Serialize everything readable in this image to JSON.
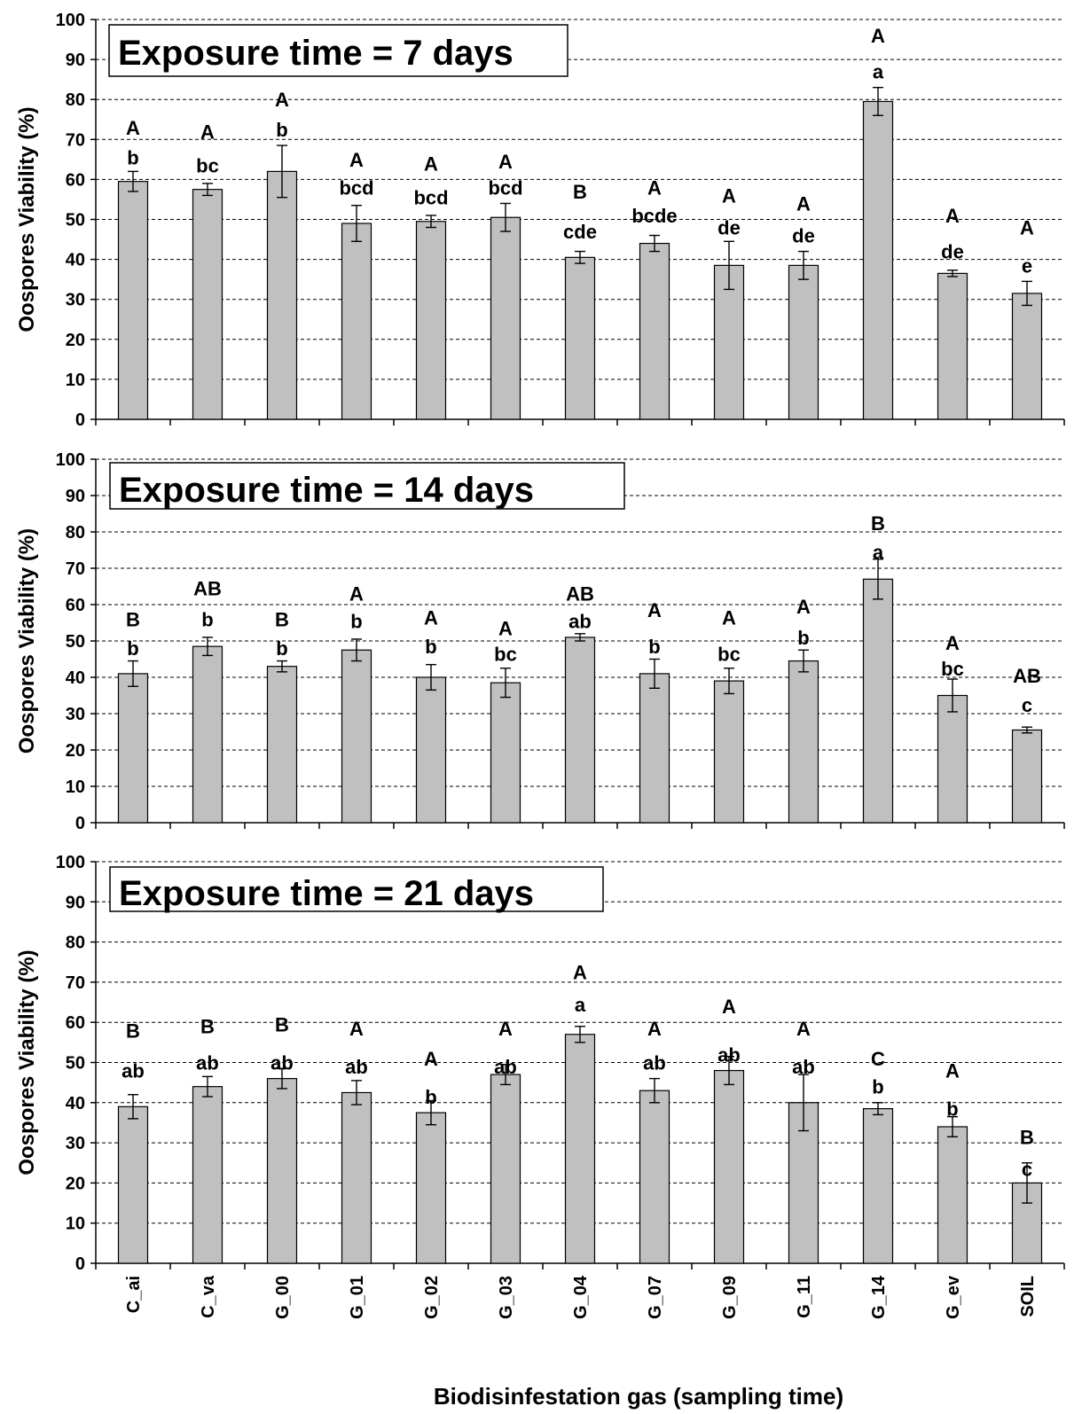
{
  "x_axis": {
    "label": "Biodisinfestation gas (sampling time)"
  },
  "colors": {
    "bar_fill": "#c0c0c0",
    "bar_stroke": "#000000",
    "grid": "#000000"
  },
  "chart_data": [
    {
      "type": "bar",
      "title": "Exposure time = 7 days",
      "ylabel": "Oospores Viability (%)",
      "ylim": [
        0,
        100
      ],
      "yticks": [
        0,
        10,
        20,
        30,
        40,
        50,
        60,
        70,
        80,
        90,
        100
      ],
      "grid": "dashed horizontal",
      "categories": [
        "C_ai",
        "C_va",
        "G_00",
        "G_01",
        "G_02",
        "G_03",
        "G_04",
        "G_07",
        "G_09",
        "G_11",
        "G_14",
        "G_ev",
        "SOIL"
      ],
      "values": [
        59.5,
        57.5,
        62,
        49,
        49.5,
        50.5,
        40.5,
        44,
        38.5,
        38.5,
        79.5,
        36.5,
        31.5
      ],
      "errors": [
        2.5,
        1.5,
        6.5,
        4.5,
        1.5,
        3.5,
        1.5,
        2,
        6,
        3.5,
        3.5,
        0.8,
        3
      ],
      "upper_letters": [
        "A",
        "A",
        "A",
        "A",
        "A",
        "A",
        "B",
        "A",
        "A",
        "A",
        "A",
        "A",
        "A"
      ],
      "lower_letters": [
        "b",
        "bc",
        "b",
        "bcd",
        "bcd",
        "bcd",
        "cde",
        "bcde",
        "de",
        "de",
        "a",
        "de",
        "e"
      ],
      "upper_letter_y": [
        73,
        72,
        80,
        65,
        64,
        64.5,
        57,
        58,
        56,
        54,
        96,
        51,
        48
      ],
      "lower_letter_y": [
        65.5,
        63.5,
        72.5,
        58,
        55.5,
        58,
        47,
        51,
        48,
        46,
        87,
        42,
        38.5
      ]
    },
    {
      "type": "bar",
      "title": "Exposure time = 14 days",
      "ylabel": "Oospores Viability (%)",
      "ylim": [
        0,
        100
      ],
      "yticks": [
        0,
        10,
        20,
        30,
        40,
        50,
        60,
        70,
        80,
        90,
        100
      ],
      "grid": "dashed horizontal",
      "categories": [
        "C_ai",
        "C_va",
        "G_00",
        "G_01",
        "G_02",
        "G_03",
        "G_04",
        "G_07",
        "G_09",
        "G_11",
        "G_14",
        "G_ev",
        "SOIL"
      ],
      "values": [
        41,
        48.5,
        43,
        47.5,
        40,
        38.5,
        51,
        41,
        39,
        44.5,
        67,
        35,
        25.5
      ],
      "errors": [
        3.5,
        2.5,
        1.5,
        3,
        3.5,
        4,
        1,
        4,
        3.5,
        3,
        5.5,
        4.5,
        0.8
      ],
      "upper_letters": [
        "B",
        "AB",
        "B",
        "A",
        "A",
        "A",
        "AB",
        "A",
        "A",
        "A",
        "B",
        "A",
        "AB"
      ],
      "lower_letters": [
        "b",
        "b",
        "b",
        "b",
        "b",
        "bc",
        "ab",
        "b",
        "bc",
        "b",
        "a",
        "bc",
        "c"
      ],
      "upper_letter_y": [
        56,
        64.5,
        56,
        63,
        56.5,
        53.5,
        63,
        58.5,
        56.5,
        59.5,
        82.5,
        49.5,
        40.5
      ],
      "lower_letter_y": [
        48,
        56,
        48,
        55.5,
        48.5,
        46.5,
        55.5,
        48.5,
        46.5,
        51,
        74.5,
        42.5,
        32.5
      ]
    },
    {
      "type": "bar",
      "title": "Exposure time = 21 days",
      "ylabel": "Oospores Viability (%)",
      "ylim": [
        0,
        100
      ],
      "yticks": [
        0,
        10,
        20,
        30,
        40,
        50,
        60,
        70,
        80,
        90,
        100
      ],
      "grid": "dashed horizontal",
      "categories": [
        "C_ai",
        "C_va",
        "G_00",
        "G_01",
        "G_02",
        "G_03",
        "G_04",
        "G_07",
        "G_09",
        "G_11",
        "G_14",
        "G_ev",
        "SOIL"
      ],
      "values": [
        39,
        44,
        46,
        42.5,
        37.5,
        47,
        57,
        43,
        48,
        40,
        38.5,
        34,
        20
      ],
      "errors": [
        3,
        2.5,
        2.5,
        3,
        3,
        2.5,
        2,
        3,
        3.5,
        7,
        1.5,
        2.5,
        5
      ],
      "upper_letters": [
        "B",
        "B",
        "B",
        "A",
        "A",
        "A",
        "A",
        "A",
        "A",
        "A",
        "C",
        "A",
        "B"
      ],
      "lower_letters": [
        "ab",
        "ab",
        "ab",
        "ab",
        "b",
        "ab",
        "a",
        "ab",
        "ab",
        "ab",
        "b",
        "b",
        "c"
      ],
      "upper_letter_y": [
        58,
        59,
        59.5,
        58.5,
        51,
        58.5,
        72.5,
        58.5,
        64,
        58.5,
        51,
        48,
        31.5
      ],
      "lower_letter_y": [
        48,
        50,
        50,
        49,
        41.5,
        49,
        64.5,
        50,
        52,
        49,
        44,
        38.5,
        23.5
      ]
    }
  ]
}
